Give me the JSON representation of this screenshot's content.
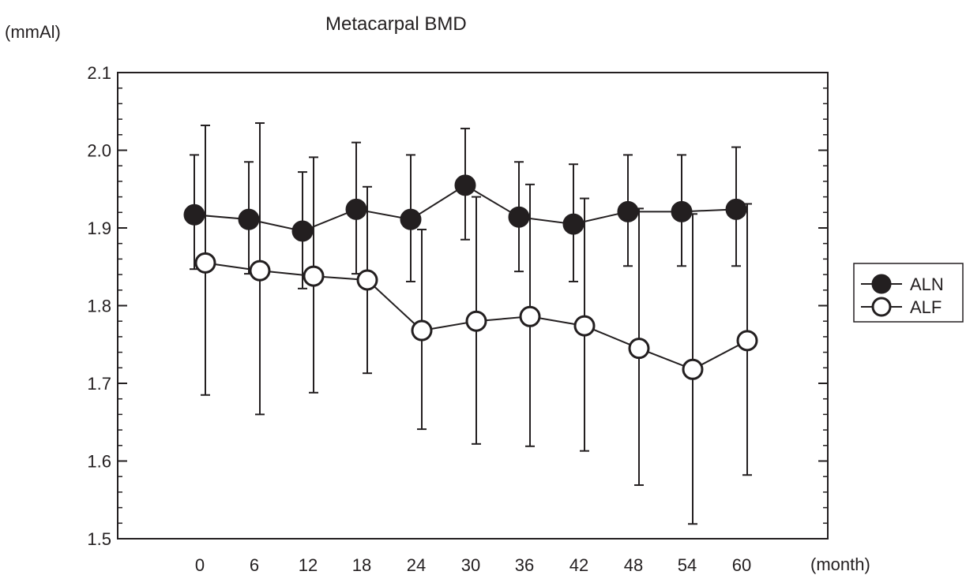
{
  "chart_data": {
    "type": "line",
    "title": "Metacarpal BMD",
    "ylabel": "(mmAl)",
    "xlabel": "(month)",
    "ylim": [
      1.5,
      2.1
    ],
    "yticks": [
      1.5,
      1.6,
      1.7,
      1.8,
      1.9,
      2.0,
      2.1
    ],
    "ytick_labels": [
      "1.5",
      "1.6",
      "1.7",
      "1.8",
      "1.9",
      "2.0",
      "2.1"
    ],
    "categories": [
      "0",
      "6",
      "12",
      "18",
      "24",
      "30",
      "36",
      "42",
      "48",
      "54",
      "60"
    ],
    "legend_position": "right",
    "series": [
      {
        "name": "ALN",
        "marker": "filled-circle",
        "color": "#231f20",
        "values": [
          1.917,
          1.911,
          1.896,
          1.924,
          1.911,
          1.955,
          1.914,
          1.905,
          1.921,
          1.921,
          1.924
        ],
        "err_low": [
          1.847,
          1.841,
          1.822,
          1.841,
          1.831,
          1.885,
          1.844,
          1.831,
          1.851,
          1.851,
          1.851
        ],
        "err_high": [
          1.994,
          1.985,
          1.972,
          2.01,
          1.994,
          2.028,
          1.985,
          1.982,
          1.994,
          1.994,
          2.004
        ]
      },
      {
        "name": "ALF",
        "marker": "open-circle",
        "color": "#231f20",
        "values": [
          1.855,
          1.845,
          1.838,
          1.833,
          1.768,
          1.78,
          1.786,
          1.774,
          1.745,
          1.718,
          1.755
        ],
        "err_low": [
          1.685,
          1.66,
          1.688,
          1.713,
          1.641,
          1.622,
          1.619,
          1.613,
          1.569,
          1.519,
          1.582
        ],
        "err_high": [
          2.032,
          2.035,
          1.991,
          1.953,
          1.898,
          1.94,
          1.956,
          1.938,
          1.925,
          1.918,
          1.931
        ]
      }
    ]
  }
}
